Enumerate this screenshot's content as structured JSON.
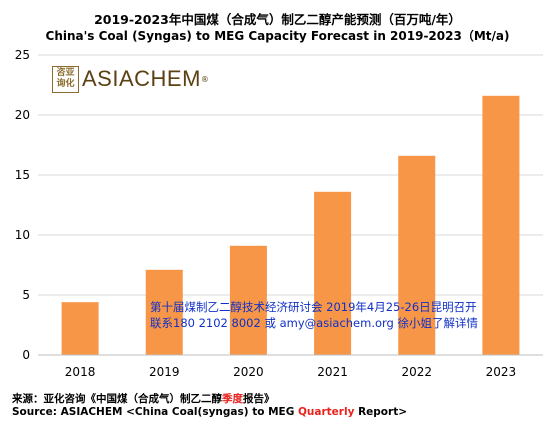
{
  "title_cn": "2019-2023年中国煤（合成气）制乙二醇产能预测（百万吨/年）",
  "title_en": "China's Coal (Syngas) to MEG Capacity Forecast in 2019-2023（Mt/a)",
  "logo": {
    "seal_text": "咨亚询化",
    "name": "ASIACHEM",
    "reg_mark": "®"
  },
  "notice": {
    "line1": "第十届煤制乙二醇技术经济研讨会 2019年4月25-26日昆明召开",
    "line2": "联系180 2102 8002 或 amy@asiachem.org 徐小姐了解详情"
  },
  "footer": {
    "source_cn_a": "来源：亚化咨询《中国煤（合成气）制乙二醇",
    "source_cn_red": "季度",
    "source_cn_b": "报告》",
    "source_en_a": "Source: ASIACHEM <China Coal(syngas) to MEG ",
    "source_en_red": "Quarterly",
    "source_en_b": " Report>"
  },
  "colors": {
    "bar": "#F79646",
    "accent_red": "#E8221C",
    "notice_blue": "#1030C8",
    "grid": "#D9D9D9"
  },
  "chart_data": {
    "type": "bar",
    "categories": [
      "2018",
      "2019",
      "2020",
      "2021",
      "2022",
      "2023"
    ],
    "values": [
      4.4,
      7.1,
      9.1,
      13.6,
      16.6,
      21.6
    ],
    "ylim": [
      0,
      25
    ],
    "yticks": [
      0,
      5,
      10,
      15,
      20,
      25
    ],
    "grid": true,
    "legend": "none",
    "xlabel": "",
    "ylabel": ""
  }
}
